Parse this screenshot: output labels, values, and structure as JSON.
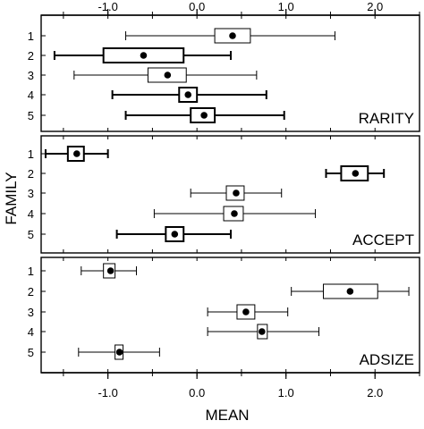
{
  "chart_data": {
    "type": "boxplot",
    "xlabel": "MEAN",
    "ylabel": "FAMILY",
    "xlim": [
      -1.75,
      2.5
    ],
    "x_ticks": [
      -1.0,
      0.0,
      1.0,
      2.0
    ],
    "x_tick_labels": [
      "-1.0",
      "0.0",
      "1.0",
      "2.0"
    ],
    "x_ticks_top": true,
    "x_tick_labels_top": true,
    "y_categories": [
      "1",
      "2",
      "3",
      "4",
      "5"
    ],
    "panel_label_position": "bottom-right",
    "panels": [
      {
        "label": "RARITY",
        "boxes": [
          {
            "family": "1",
            "whisker_low": -0.8,
            "q1": 0.2,
            "mean": 0.4,
            "q3": 0.6,
            "whisker_high": 1.55,
            "bold": false
          },
          {
            "family": "2",
            "whisker_low": -1.6,
            "q1": -1.05,
            "mean": -0.6,
            "q3": -0.15,
            "whisker_high": 0.38,
            "bold": true
          },
          {
            "family": "3",
            "whisker_low": -1.38,
            "q1": -0.55,
            "mean": -0.33,
            "q3": -0.12,
            "whisker_high": 0.67,
            "bold": false
          },
          {
            "family": "4",
            "whisker_low": -0.95,
            "q1": -0.2,
            "mean": -0.1,
            "q3": 0.0,
            "whisker_high": 0.78,
            "bold": true
          },
          {
            "family": "5",
            "whisker_low": -0.8,
            "q1": -0.07,
            "mean": 0.08,
            "q3": 0.2,
            "whisker_high": 0.98,
            "bold": true
          }
        ]
      },
      {
        "label": "ACCEPT",
        "boxes": [
          {
            "family": "1",
            "whisker_low": -1.7,
            "q1": -1.45,
            "mean": -1.35,
            "q3": -1.27,
            "whisker_high": -1.0,
            "bold": true
          },
          {
            "family": "2",
            "whisker_low": 1.45,
            "q1": 1.62,
            "mean": 1.78,
            "q3": 1.92,
            "whisker_high": 2.1,
            "bold": true
          },
          {
            "family": "3",
            "whisker_low": -0.07,
            "q1": 0.33,
            "mean": 0.44,
            "q3": 0.53,
            "whisker_high": 0.95,
            "bold": false
          },
          {
            "family": "4",
            "whisker_low": -0.48,
            "q1": 0.3,
            "mean": 0.42,
            "q3": 0.52,
            "whisker_high": 1.33,
            "bold": false
          },
          {
            "family": "5",
            "whisker_low": -0.9,
            "q1": -0.35,
            "mean": -0.25,
            "q3": -0.15,
            "whisker_high": 0.38,
            "bold": true
          }
        ]
      },
      {
        "label": "ADSIZE",
        "boxes": [
          {
            "family": "1",
            "whisker_low": -1.3,
            "q1": -1.05,
            "mean": -0.97,
            "q3": -0.92,
            "whisker_high": -0.68,
            "bold": false
          },
          {
            "family": "2",
            "whisker_low": 1.06,
            "q1": 1.42,
            "mean": 1.72,
            "q3": 2.03,
            "whisker_high": 2.38,
            "bold": false
          },
          {
            "family": "3",
            "whisker_low": 0.12,
            "q1": 0.45,
            "mean": 0.55,
            "q3": 0.65,
            "whisker_high": 1.02,
            "bold": false
          },
          {
            "family": "4",
            "whisker_low": 0.12,
            "q1": 0.68,
            "mean": 0.73,
            "q3": 0.79,
            "whisker_high": 1.37,
            "bold": false
          },
          {
            "family": "5",
            "whisker_low": -1.33,
            "q1": -0.92,
            "mean": -0.87,
            "q3": -0.83,
            "whisker_high": -0.42,
            "bold": false
          }
        ]
      }
    ]
  }
}
